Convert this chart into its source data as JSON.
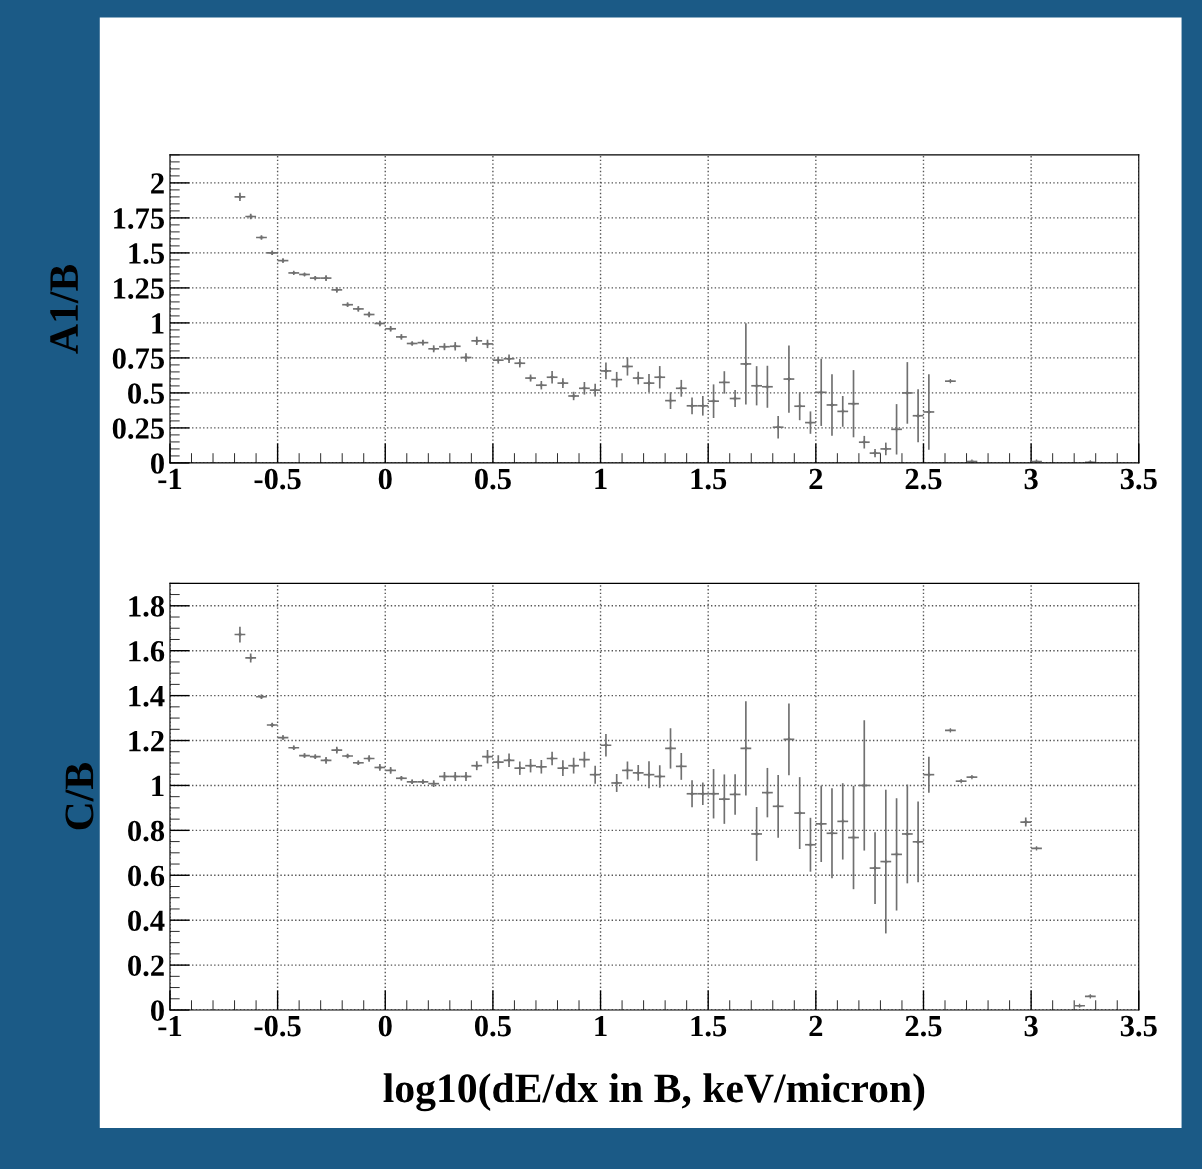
{
  "chart_data": [
    {
      "type": "scatter",
      "ylabel": "A1/B",
      "xlim": [
        -1,
        3.5
      ],
      "xticks": [
        -1,
        -0.5,
        0,
        0.5,
        1,
        1.5,
        2,
        2.5,
        3,
        3.5
      ],
      "ylim": [
        0,
        2.2
      ],
      "yticks": [
        0,
        0.25,
        0.5,
        0.75,
        1,
        1.25,
        1.5,
        1.75,
        2
      ],
      "grid": true,
      "marker": "cross",
      "series": [
        {
          "color": "#707070",
          "x": [
            -0.675,
            -0.625,
            -0.575,
            -0.525,
            -0.475,
            -0.425,
            -0.375,
            -0.325,
            -0.275,
            -0.225,
            -0.175,
            -0.125,
            -0.075,
            -0.025,
            0.025,
            0.075,
            0.125,
            0.175,
            0.225,
            0.275,
            0.325,
            0.375,
            0.425,
            0.475,
            0.525,
            0.575,
            0.625,
            0.675,
            0.725,
            0.775,
            0.825,
            0.875,
            0.925,
            0.975,
            1.025,
            1.075,
            1.125,
            1.175,
            1.225,
            1.275,
            1.325,
            1.375,
            1.425,
            1.475,
            1.525,
            1.575,
            1.625,
            1.675,
            1.725,
            1.775,
            1.825,
            1.875,
            1.925,
            1.975,
            2.025,
            2.075,
            2.125,
            2.175,
            2.225,
            2.275,
            2.325,
            2.375,
            2.425,
            2.475,
            2.525,
            2.625,
            2.725,
            3.025,
            3.275
          ],
          "values": [
            1.9,
            1.76,
            1.61,
            1.5,
            1.445,
            1.357,
            1.346,
            1.32,
            1.32,
            1.236,
            1.13,
            1.1,
            1.06,
            0.996,
            0.958,
            0.9,
            0.853,
            0.859,
            0.815,
            0.83,
            0.833,
            0.753,
            0.872,
            0.85,
            0.734,
            0.744,
            0.712,
            0.606,
            0.555,
            0.612,
            0.57,
            0.478,
            0.533,
            0.52,
            0.657,
            0.595,
            0.689,
            0.606,
            0.57,
            0.612,
            0.445,
            0.533,
            0.408,
            0.408,
            0.441,
            0.575,
            0.46,
            0.707,
            0.551,
            0.544,
            0.255,
            0.599,
            0.405,
            0.288,
            0.504,
            0.414,
            0.368,
            0.423,
            0.148,
            0.07,
            0.1,
            0.24,
            0.5,
            0.337,
            0.364,
            0.584,
            0.01,
            0.01,
            0.005
          ],
          "errors": [
            0.03,
            0.02,
            0.015,
            0.015,
            0.015,
            0.01,
            0.01,
            0.015,
            0.02,
            0.02,
            0.015,
            0.02,
            0.02,
            0.02,
            0.02,
            0.02,
            0.015,
            0.02,
            0.025,
            0.025,
            0.03,
            0.03,
            0.03,
            0.03,
            0.025,
            0.03,
            0.03,
            0.025,
            0.03,
            0.045,
            0.035,
            0.03,
            0.045,
            0.045,
            0.06,
            0.055,
            0.065,
            0.045,
            0.065,
            0.08,
            0.06,
            0.06,
            0.06,
            0.07,
            0.12,
            0.08,
            0.06,
            0.29,
            0.14,
            0.15,
            0.08,
            0.24,
            0.1,
            0.08,
            0.24,
            0.22,
            0.11,
            0.24,
            0.045,
            0.03,
            0.045,
            0.18,
            0.22,
            0.19,
            0.27,
            null,
            null,
            null,
            null
          ],
          "xerrors": [
            0.025,
            0.025,
            0.025,
            0.025,
            0.025,
            0.025,
            0.025,
            0.025,
            0.025,
            0.025,
            0.025,
            0.025,
            0.025,
            0.025,
            0.025,
            0.025,
            0.025,
            0.025,
            0.025,
            0.025,
            0.025,
            0.025,
            0.025,
            0.025,
            0.025,
            0.025,
            0.025,
            0.025,
            0.025,
            0.025,
            0.025,
            0.025,
            0.025,
            0.025,
            0.025,
            0.025,
            0.025,
            0.025,
            0.025,
            0.025,
            0.025,
            0.025,
            0.025,
            0.025,
            0.025,
            0.025,
            0.025,
            0.025,
            0.025,
            0.025,
            0.025,
            0.025,
            0.025,
            0.025,
            0.025,
            0.025,
            0.025,
            0.025,
            0.025,
            0.025,
            0.025,
            0.025,
            0.025,
            0.025,
            0.025,
            0.025,
            0.025,
            0.025,
            0.025
          ]
        }
      ]
    },
    {
      "type": "scatter",
      "ylabel": "C/B",
      "xlabel": "log10(dE/dx in B, keV/micron)",
      "xlim": [
        -1,
        3.5
      ],
      "xticks": [
        -1,
        -0.5,
        0,
        0.5,
        1,
        1.5,
        2,
        2.5,
        3,
        3.5
      ],
      "ylim": [
        0,
        1.9
      ],
      "yticks": [
        0,
        0.2,
        0.4,
        0.6,
        0.8,
        1,
        1.2,
        1.4,
        1.6,
        1.8
      ],
      "grid": true,
      "marker": "cross",
      "series": [
        {
          "color": "#707070",
          "x": [
            -0.675,
            -0.625,
            -0.575,
            -0.525,
            -0.475,
            -0.425,
            -0.375,
            -0.325,
            -0.275,
            -0.225,
            -0.175,
            -0.125,
            -0.075,
            -0.025,
            0.025,
            0.075,
            0.125,
            0.175,
            0.225,
            0.275,
            0.325,
            0.375,
            0.425,
            0.475,
            0.525,
            0.575,
            0.625,
            0.675,
            0.725,
            0.775,
            0.825,
            0.875,
            0.925,
            0.975,
            1.025,
            1.075,
            1.125,
            1.175,
            1.225,
            1.275,
            1.325,
            1.375,
            1.425,
            1.475,
            1.525,
            1.575,
            1.625,
            1.675,
            1.725,
            1.775,
            1.825,
            1.875,
            1.925,
            1.975,
            2.025,
            2.075,
            2.125,
            2.175,
            2.225,
            2.275,
            2.325,
            2.375,
            2.425,
            2.475,
            2.525,
            2.625,
            2.675,
            2.725,
            2.975,
            3.025,
            3.225,
            3.275
          ],
          "values": [
            1.672,
            1.568,
            1.395,
            1.269,
            1.213,
            1.168,
            1.133,
            1.128,
            1.112,
            1.157,
            1.131,
            1.101,
            1.12,
            1.08,
            1.067,
            1.032,
            1.016,
            1.016,
            1.008,
            1.04,
            1.04,
            1.04,
            1.088,
            1.128,
            1.104,
            1.112,
            1.077,
            1.088,
            1.083,
            1.12,
            1.077,
            1.088,
            1.115,
            1.048,
            1.179,
            1.011,
            1.067,
            1.056,
            1.048,
            1.04,
            1.165,
            1.085,
            0.963,
            0.963,
            0.963,
            0.939,
            0.96,
            1.165,
            0.784,
            0.968,
            0.907,
            1.205,
            0.877,
            0.736,
            0.829,
            0.787,
            0.84,
            0.768,
            1.0,
            0.632,
            0.661,
            0.693,
            0.784,
            0.749,
            1.048,
            1.245,
            1.019,
            1.037,
            0.837,
            0.72,
            0.019,
            0.061
          ],
          "errors": [
            0.035,
            0.02,
            0.01,
            0.01,
            0.01,
            0.01,
            0.01,
            0.01,
            0.015,
            0.015,
            0.01,
            0.01,
            0.015,
            0.015,
            0.015,
            0.01,
            0.01,
            0.01,
            0.015,
            0.02,
            0.02,
            0.02,
            0.02,
            0.03,
            0.03,
            0.03,
            0.03,
            0.03,
            0.03,
            0.03,
            0.035,
            0.035,
            0.035,
            0.04,
            0.05,
            0.04,
            0.04,
            0.035,
            0.06,
            0.05,
            0.09,
            0.06,
            0.06,
            0.05,
            0.11,
            0.11,
            0.09,
            0.21,
            0.12,
            0.11,
            0.14,
            0.16,
            0.16,
            0.12,
            0.17,
            0.2,
            0.17,
            0.23,
            0.29,
            0.16,
            0.32,
            0.25,
            0.22,
            0.18,
            0.08,
            null,
            null,
            null,
            0.02,
            null,
            null,
            null
          ],
          "xerrors": [
            0.025,
            0.025,
            0.025,
            0.025,
            0.025,
            0.025,
            0.025,
            0.025,
            0.025,
            0.025,
            0.025,
            0.025,
            0.025,
            0.025,
            0.025,
            0.025,
            0.025,
            0.025,
            0.025,
            0.025,
            0.025,
            0.025,
            0.025,
            0.025,
            0.025,
            0.025,
            0.025,
            0.025,
            0.025,
            0.025,
            0.025,
            0.025,
            0.025,
            0.025,
            0.025,
            0.025,
            0.025,
            0.025,
            0.025,
            0.025,
            0.025,
            0.025,
            0.025,
            0.025,
            0.025,
            0.025,
            0.025,
            0.025,
            0.025,
            0.025,
            0.025,
            0.025,
            0.025,
            0.025,
            0.025,
            0.025,
            0.025,
            0.025,
            0.025,
            0.025,
            0.025,
            0.025,
            0.025,
            0.025,
            0.025,
            0.025,
            0.025,
            0.025,
            0.025,
            0.025,
            0.025,
            0.025
          ]
        }
      ]
    }
  ]
}
